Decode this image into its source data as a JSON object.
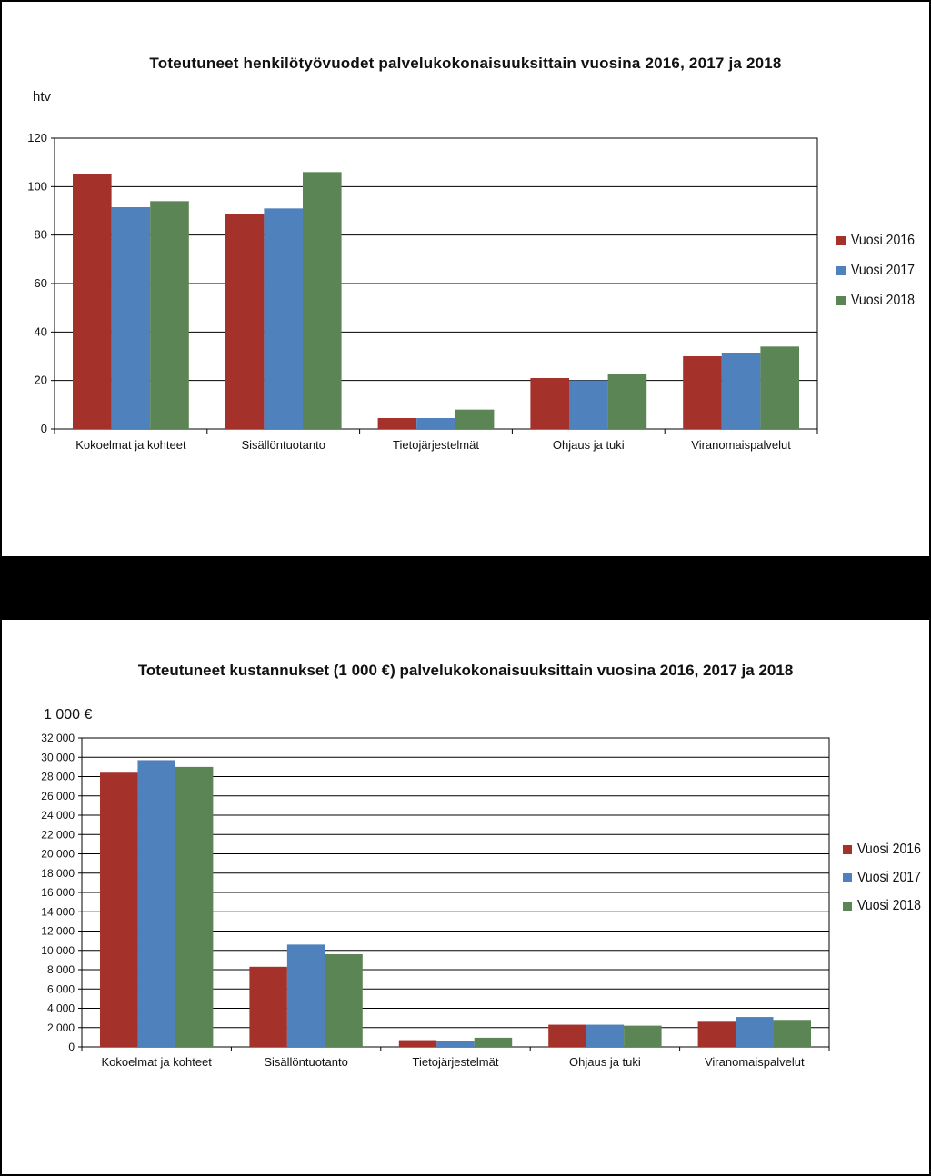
{
  "charts": [
    {
      "title": "Toteutuneet henkilötyövuodet  palvelukokonaisuuksittain  vuosina  2016, 2017 ja 2018",
      "unit_label": "htv"
    },
    {
      "title": "Toteutuneet kustannukset (1 000 €) palvelukokonaisuuksittain vuosina 2016, 2017 ja 2018",
      "unit_label": "1 000 €"
    }
  ],
  "colors": {
    "Vuosi 2016": "#A4312A",
    "Vuosi 2017": "#4F81BD",
    "Vuosi 2018": "#5B8555"
  },
  "chart_data": [
    {
      "type": "bar",
      "title": "Toteutuneet henkilötyövuodet  palvelukokonaisuuksittain  vuosina  2016, 2017 ja 2018",
      "ylabel": "htv",
      "xlabel": "",
      "categories": [
        "Kokoelmat ja kohteet",
        "Sisällöntuotanto",
        "Tietojärjestelmät",
        "Ohjaus ja tuki",
        "Viranomaispalvelut"
      ],
      "series": [
        {
          "name": "Vuosi 2016",
          "values": [
            105,
            88.5,
            4.5,
            21,
            30
          ]
        },
        {
          "name": "Vuosi 2017",
          "values": [
            91.5,
            91,
            4.5,
            20,
            31.5
          ]
        },
        {
          "name": "Vuosi 2018",
          "values": [
            94,
            106,
            8,
            22.5,
            34
          ]
        }
      ],
      "ylim": [
        0,
        120
      ],
      "yticks": [
        0,
        20,
        40,
        60,
        80,
        100,
        120
      ],
      "ytick_labels": [
        "0",
        "20",
        "40",
        "60",
        "80",
        "100",
        "120"
      ],
      "grid": true,
      "legend": "right"
    },
    {
      "type": "bar",
      "title": "Toteutuneet kustannukset (1 000 €) palvelukokonaisuuksittain vuosina 2016, 2017 ja 2018",
      "ylabel": "1 000 €",
      "xlabel": "",
      "categories": [
        "Kokoelmat ja kohteet",
        "Sisällöntuotanto",
        "Tietojärjestelmät",
        "Ohjaus ja tuki",
        "Viranomaispalvelut"
      ],
      "series": [
        {
          "name": "Vuosi 2016",
          "values": [
            28400,
            8300,
            700,
            2300,
            2700
          ]
        },
        {
          "name": "Vuosi 2017",
          "values": [
            29700,
            10600,
            650,
            2300,
            3100
          ]
        },
        {
          "name": "Vuosi 2018",
          "values": [
            29000,
            9600,
            950,
            2200,
            2800
          ]
        }
      ],
      "ylim": [
        0,
        32000
      ],
      "yticks": [
        0,
        2000,
        4000,
        6000,
        8000,
        10000,
        12000,
        14000,
        16000,
        18000,
        20000,
        22000,
        24000,
        26000,
        28000,
        30000,
        32000
      ],
      "ytick_labels": [
        "0",
        "2 000",
        "4 000",
        "6 000",
        "8 000",
        "10 000",
        "12 000",
        "14 000",
        "16 000",
        "18 000",
        "20 000",
        "22 000",
        "24 000",
        "26 000",
        "28 000",
        "30 000",
        "32 000"
      ],
      "grid": true,
      "legend": "right"
    }
  ]
}
